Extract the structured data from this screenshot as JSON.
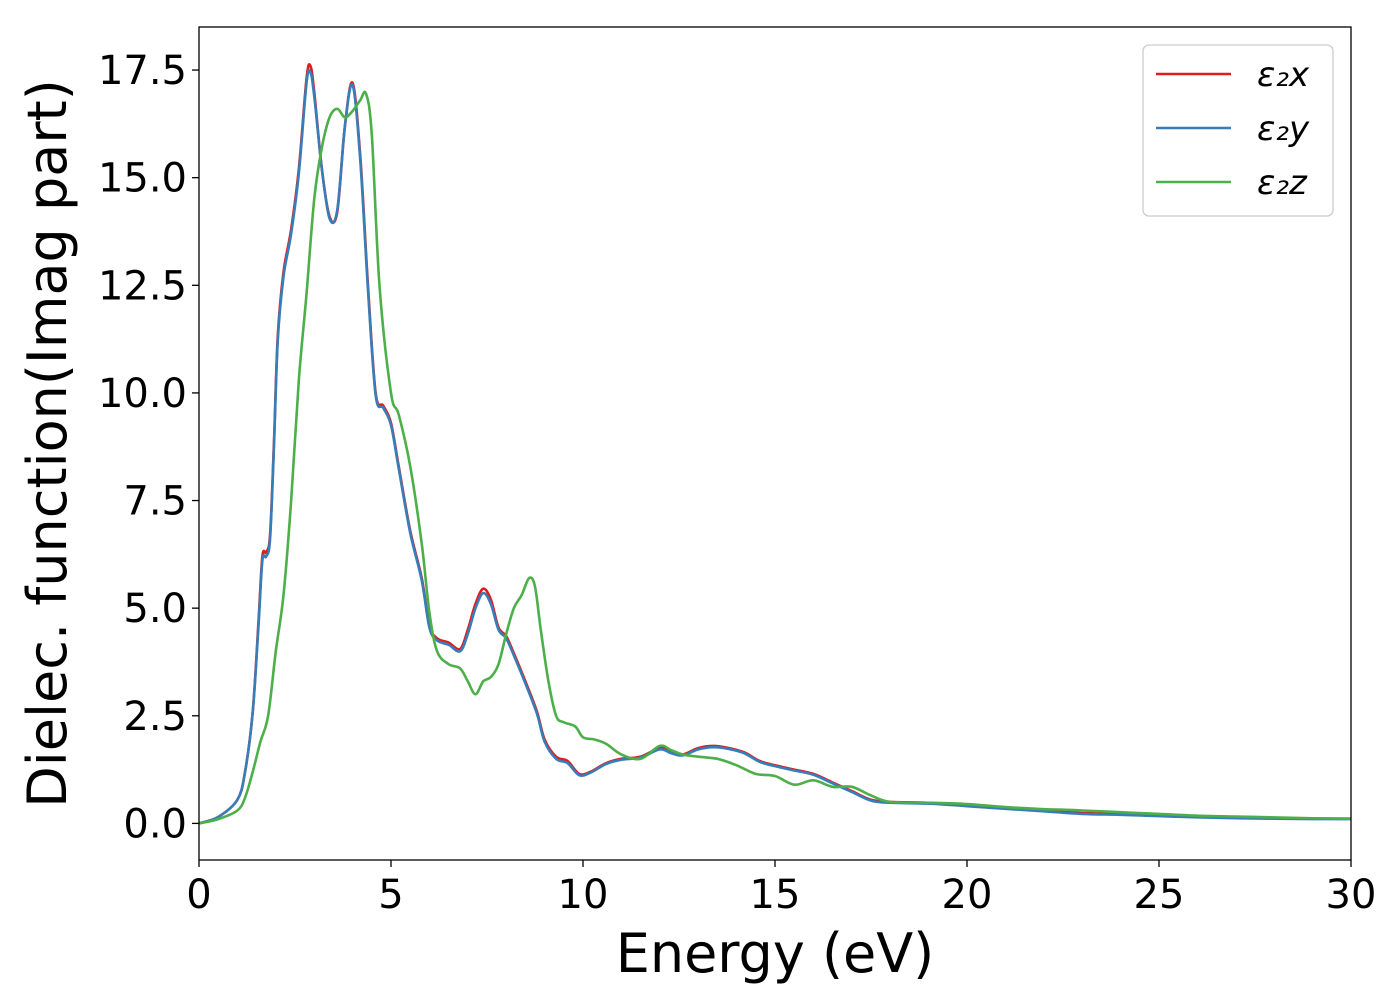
{
  "chart_data": {
    "type": "line",
    "title": "",
    "xlabel": "Energy (eV)",
    "ylabel": "Dielec. function(Imag part)",
    "xlim": [
      0,
      30
    ],
    "ylim": [
      -0.85,
      18.5
    ],
    "xticks": [
      0,
      5,
      10,
      15,
      20,
      25,
      30
    ],
    "xtick_labels": [
      "0",
      "5",
      "10",
      "15",
      "20",
      "25",
      "30"
    ],
    "yticks": [
      0,
      2.5,
      5,
      7.5,
      10,
      12.5,
      15,
      17.5
    ],
    "ytick_labels": [
      "0.0",
      "2.5",
      "5.0",
      "7.5",
      "10.0",
      "12.5",
      "15.0",
      "17.5"
    ],
    "grid": false,
    "legend_position": "top-right",
    "series": [
      {
        "name": "ε₂x",
        "color": "#e41a1c",
        "x": [
          0,
          0.5,
          1.0,
          1.2,
          1.4,
          1.55,
          1.65,
          1.75,
          1.85,
          1.95,
          2.05,
          2.2,
          2.4,
          2.6,
          2.8,
          2.9,
          3.0,
          3.2,
          3.4,
          3.6,
          3.8,
          4.0,
          4.2,
          4.4,
          4.6,
          4.8,
          5.0,
          5.2,
          5.5,
          5.8,
          6.0,
          6.2,
          6.5,
          6.8,
          7.0,
          7.2,
          7.4,
          7.6,
          7.8,
          8.0,
          8.2,
          8.5,
          8.8,
          9.0,
          9.3,
          9.6,
          9.9,
          10.2,
          10.6,
          11.0,
          11.5,
          12.0,
          12.3,
          12.6,
          13.0,
          13.4,
          13.8,
          14.2,
          14.6,
          15.0,
          15.5,
          16.0,
          16.5,
          17.0,
          17.5,
          18.0,
          19.0,
          20.0,
          21.0,
          22.0,
          23.0,
          24.0,
          25.0,
          26.0,
          27.0,
          28.0,
          29.0,
          30.0
        ],
        "y": [
          0.0,
          0.15,
          0.55,
          1.2,
          2.6,
          4.7,
          6.2,
          6.3,
          6.7,
          8.8,
          11.3,
          12.8,
          13.8,
          15.2,
          17.3,
          17.6,
          17.0,
          15.2,
          14.1,
          14.2,
          16.2,
          17.2,
          15.5,
          12.5,
          10.0,
          9.7,
          9.3,
          8.3,
          6.8,
          5.7,
          4.6,
          4.3,
          4.2,
          4.05,
          4.5,
          5.1,
          5.45,
          5.2,
          4.55,
          4.35,
          3.95,
          3.3,
          2.6,
          1.95,
          1.55,
          1.45,
          1.15,
          1.2,
          1.4,
          1.5,
          1.55,
          1.75,
          1.65,
          1.6,
          1.75,
          1.8,
          1.75,
          1.65,
          1.45,
          1.35,
          1.25,
          1.15,
          0.95,
          0.75,
          0.55,
          0.5,
          0.48,
          0.42,
          0.36,
          0.3,
          0.24,
          0.22,
          0.19,
          0.16,
          0.14,
          0.12,
          0.11,
          0.11
        ]
      },
      {
        "name": "ε₂y",
        "color": "#377eb8",
        "x": [
          0,
          0.5,
          1.0,
          1.2,
          1.4,
          1.55,
          1.65,
          1.75,
          1.85,
          1.95,
          2.05,
          2.2,
          2.4,
          2.6,
          2.8,
          2.9,
          3.0,
          3.2,
          3.4,
          3.6,
          3.8,
          4.0,
          4.2,
          4.4,
          4.6,
          4.8,
          5.0,
          5.2,
          5.5,
          5.8,
          6.0,
          6.2,
          6.5,
          6.8,
          7.0,
          7.2,
          7.4,
          7.6,
          7.8,
          8.0,
          8.2,
          8.5,
          8.8,
          9.0,
          9.3,
          9.6,
          9.9,
          10.2,
          10.6,
          11.0,
          11.5,
          12.0,
          12.3,
          12.6,
          13.0,
          13.4,
          13.8,
          14.2,
          14.6,
          15.0,
          15.5,
          16.0,
          16.5,
          17.0,
          17.5,
          18.0,
          19.0,
          20.0,
          21.0,
          22.0,
          23.0,
          24.0,
          25.0,
          26.0,
          27.0,
          28.0,
          29.0,
          30.0
        ],
        "y": [
          0.0,
          0.15,
          0.55,
          1.2,
          2.6,
          4.6,
          6.1,
          6.2,
          6.6,
          8.7,
          11.2,
          12.7,
          13.7,
          15.1,
          17.2,
          17.45,
          16.9,
          15.2,
          14.05,
          14.25,
          16.2,
          17.15,
          15.4,
          12.4,
          9.95,
          9.65,
          9.25,
          8.25,
          6.75,
          5.65,
          4.55,
          4.25,
          4.15,
          4.0,
          4.4,
          5.0,
          5.35,
          5.1,
          4.5,
          4.3,
          3.9,
          3.25,
          2.55,
          1.9,
          1.5,
          1.4,
          1.12,
          1.18,
          1.38,
          1.48,
          1.53,
          1.72,
          1.63,
          1.58,
          1.72,
          1.77,
          1.73,
          1.63,
          1.43,
          1.33,
          1.23,
          1.13,
          0.93,
          0.73,
          0.53,
          0.48,
          0.46,
          0.4,
          0.34,
          0.28,
          0.22,
          0.2,
          0.17,
          0.14,
          0.12,
          0.11,
          0.1,
          0.1
        ]
      },
      {
        "name": "ε₂z",
        "color": "#4daf4a",
        "x": [
          0,
          0.5,
          1.0,
          1.2,
          1.4,
          1.6,
          1.8,
          2.0,
          2.2,
          2.4,
          2.6,
          2.8,
          3.0,
          3.2,
          3.4,
          3.6,
          3.8,
          4.0,
          4.2,
          4.35,
          4.5,
          4.7,
          5.0,
          5.2,
          5.5,
          5.8,
          6.0,
          6.2,
          6.5,
          6.8,
          7.0,
          7.2,
          7.4,
          7.6,
          7.8,
          8.0,
          8.2,
          8.4,
          8.6,
          8.75,
          8.9,
          9.1,
          9.3,
          9.5,
          9.8,
          10.0,
          10.3,
          10.6,
          11.0,
          11.5,
          12.0,
          12.3,
          12.6,
          13.0,
          13.5,
          14.0,
          14.5,
          15.0,
          15.5,
          16.0,
          16.5,
          17.0,
          17.5,
          18.0,
          19.0,
          20.0,
          21.0,
          22.0,
          22.5,
          23.0,
          24.0,
          25.0,
          26.0,
          27.0,
          28.0,
          29.0,
          30.0
        ],
        "y": [
          0.0,
          0.1,
          0.3,
          0.6,
          1.2,
          1.9,
          2.5,
          4.0,
          5.3,
          7.5,
          10.3,
          12.3,
          14.5,
          15.7,
          16.4,
          16.6,
          16.4,
          16.55,
          16.8,
          16.95,
          16.0,
          12.5,
          10.0,
          9.5,
          8.3,
          6.5,
          4.9,
          4.0,
          3.7,
          3.6,
          3.3,
          3.0,
          3.3,
          3.4,
          3.7,
          4.4,
          5.0,
          5.3,
          5.7,
          5.5,
          4.5,
          3.3,
          2.5,
          2.35,
          2.25,
          2.0,
          1.95,
          1.85,
          1.6,
          1.5,
          1.8,
          1.7,
          1.6,
          1.55,
          1.5,
          1.35,
          1.15,
          1.1,
          0.9,
          1.0,
          0.85,
          0.85,
          0.65,
          0.5,
          0.48,
          0.45,
          0.38,
          0.33,
          0.32,
          0.3,
          0.26,
          0.22,
          0.18,
          0.16,
          0.14,
          0.12,
          0.11
        ]
      }
    ]
  }
}
